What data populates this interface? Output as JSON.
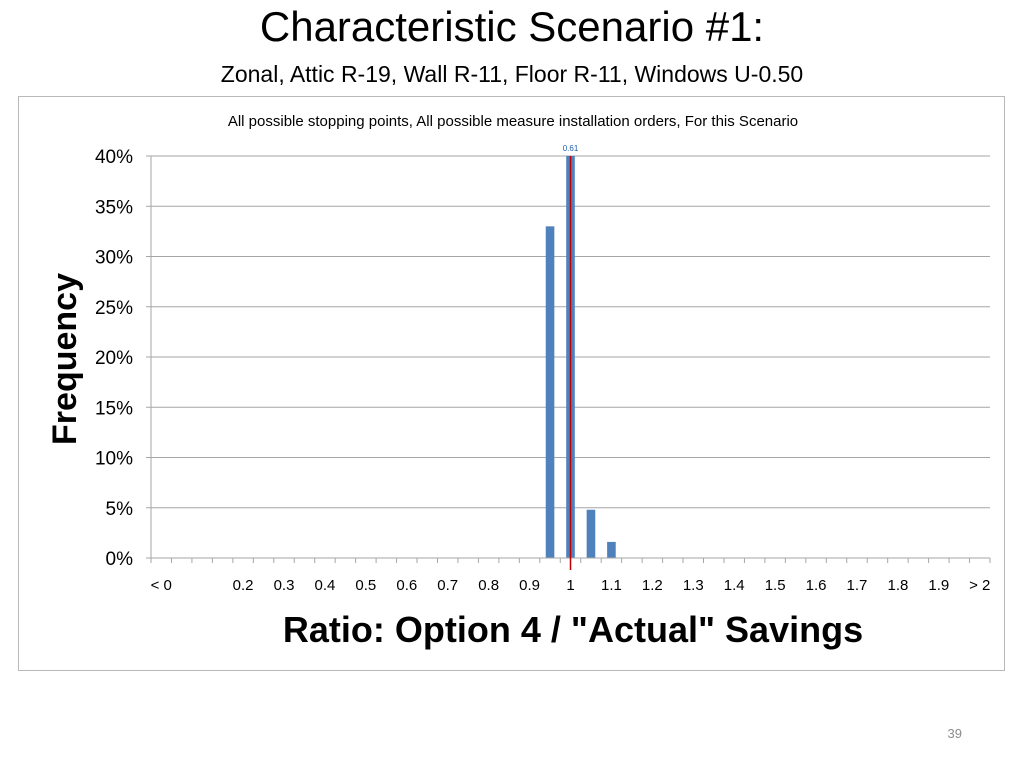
{
  "slide": {
    "title": "Characteristic Scenario #1:",
    "subtitle": "Zonal, Attic R-19, Wall R-11, Floor R-11, Windows U-0.50",
    "page_number": "39"
  },
  "colors": {
    "bar": "#4f81bd",
    "reference_line": "#c00000",
    "annotation": "#1f5fa8",
    "gridline": "#a6a6a6",
    "frame": "#b9b9b9"
  },
  "chart_data": {
    "type": "bar",
    "title": "All possible stopping points, All possible measure installation orders, For this Scenario",
    "xlabel": "Ratio: Option 4 / \"Actual\" Savings",
    "ylabel": "Frequency",
    "ylim": [
      0,
      0.4
    ],
    "yticks": [
      "0%",
      "5%",
      "10%",
      "15%",
      "20%",
      "25%",
      "30%",
      "35%",
      "40%"
    ],
    "grid": true,
    "categories": [
      "< 0",
      "0.05",
      "0.1",
      "0.15",
      "0.2",
      "0.25",
      "0.3",
      "0.35",
      "0.4",
      "0.45",
      "0.5",
      "0.55",
      "0.6",
      "0.65",
      "0.7",
      "0.75",
      "0.8",
      "0.85",
      "0.9",
      "0.95",
      "1",
      "1.05",
      "1.1",
      "1.15",
      "1.2",
      "1.25",
      "1.3",
      "1.35",
      "1.4",
      "1.45",
      "1.5",
      "1.55",
      "1.6",
      "1.65",
      "1.7",
      "1.75",
      "1.8",
      "1.85",
      "1.9",
      "1.95",
      "> 2"
    ],
    "tick_labels": [
      "< 0",
      "",
      "0.2",
      "0.3",
      "0.4",
      "0.5",
      "0.6",
      "0.7",
      "0.8",
      "0.9",
      "1",
      "1.1",
      "1.2",
      "1.3",
      "1.4",
      "1.5",
      "1.6",
      "1.7",
      "1.8",
      "1.9",
      "",
      "> 2"
    ],
    "values": [
      0,
      0,
      0,
      0,
      0,
      0,
      0,
      0,
      0,
      0,
      0,
      0,
      0,
      0,
      0,
      0,
      0,
      0,
      0,
      0.33,
      0.4,
      0.048,
      0.016,
      0,
      0,
      0,
      0,
      0,
      0,
      0,
      0,
      0,
      0,
      0,
      0,
      0,
      0,
      0,
      0,
      0,
      0
    ],
    "reference_line": {
      "x_category": "1",
      "label": "0.61"
    }
  }
}
